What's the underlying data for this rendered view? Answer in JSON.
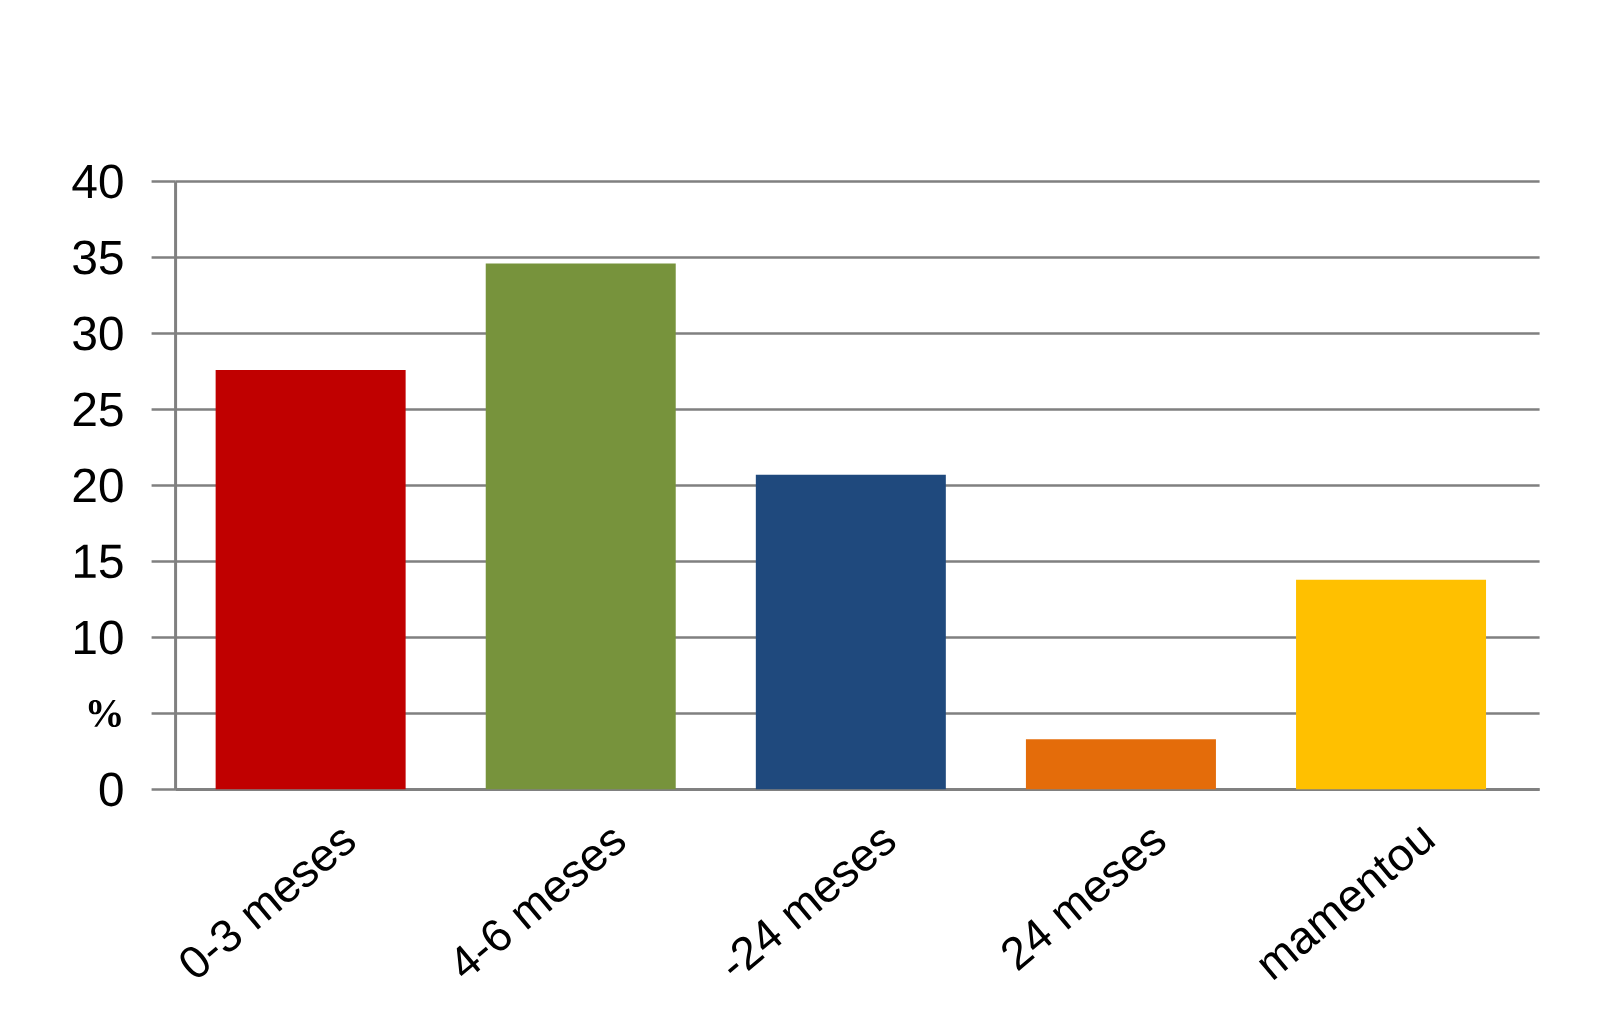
{
  "chart_data": {
    "type": "bar",
    "ylabel": "%",
    "categories": [
      "0-3 meses",
      "4-6 meses",
      "-24 meses",
      "24 meses",
      "mamentou"
    ],
    "values": [
      27.6,
      34.6,
      20.7,
      3.3,
      13.8
    ],
    "colors": [
      "#c00000",
      "#77933c",
      "#1f497d",
      "#e46c0a",
      "#ffc000"
    ],
    "ylim": [
      0,
      40
    ],
    "yticks": [
      0,
      {
        "value": 5,
        "label": null
      },
      10,
      15,
      20,
      25,
      30,
      35,
      40
    ],
    "grid": "y"
  }
}
